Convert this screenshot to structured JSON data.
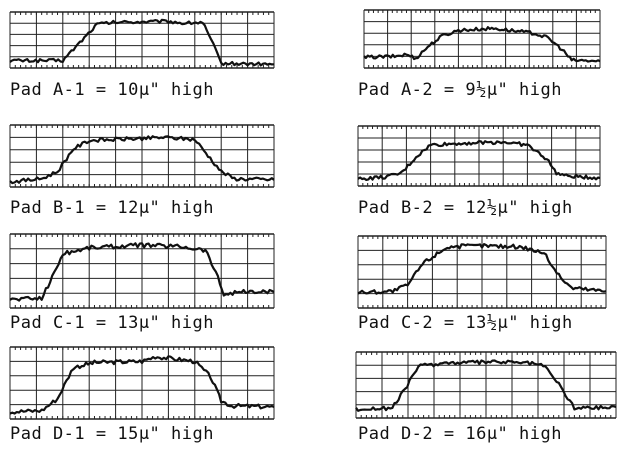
{
  "chart_data": [
    {
      "type": "line",
      "title": "Pad A-1 = 10µ\" high",
      "series": [
        {
          "x": [
            0,
            13,
            20,
            33,
            40,
            60,
            66,
            73,
            77,
            80,
            100
          ],
          "y": [
            0.3,
            0.3,
            0.3,
            4.2,
            4.4,
            4.5,
            4.3,
            4.4,
            2.0,
            0,
            -0.1
          ]
        }
      ]
    },
    {
      "type": "line",
      "title": "Pad A-2 = 9½µ\" high",
      "series": [
        {
          "x": [
            0,
            13,
            18,
            22,
            27,
            33,
            40,
            55,
            72,
            78,
            84,
            88,
            100
          ],
          "y": [
            0.6,
            0.7,
            0.9,
            0.5,
            1.7,
            2.8,
            3.4,
            3.6,
            3.1,
            2.6,
            1.4,
            0.3,
            0.2
          ]
        }
      ]
    },
    {
      "type": "line",
      "title": "Pad B-1 = 12µ\" high",
      "series": [
        {
          "x": [
            0,
            12,
            18,
            24,
            30,
            50,
            58,
            70,
            80,
            85,
            100
          ],
          "y": [
            0,
            0.3,
            1.0,
            3.2,
            4.0,
            4.2,
            4.3,
            4.1,
            1.0,
            0.3,
            0.2
          ]
        }
      ]
    },
    {
      "type": "line",
      "title": "Pad B-2 = 12½µ\" high",
      "series": [
        {
          "x": [
            0,
            12,
            18,
            24,
            30,
            45,
            60,
            70,
            78,
            82,
            86,
            100
          ],
          "y": [
            0.2,
            0.4,
            0.8,
            2.4,
            3.6,
            3.8,
            3.9,
            3.6,
            2.2,
            0.8,
            0.5,
            0.3
          ]
        }
      ]
    },
    {
      "type": "line",
      "title": "Pad C-1 = 13µ\" high",
      "series": [
        {
          "x": [
            0,
            12,
            16,
            20,
            30,
            50,
            65,
            74,
            78,
            81,
            86,
            100
          ],
          "y": [
            0.2,
            0.3,
            2.0,
            3.9,
            4.4,
            4.6,
            4.5,
            4.2,
            2.4,
            0.6,
            0.8,
            0.8
          ]
        }
      ]
    },
    {
      "type": "line",
      "title": "Pad C-2 = 13½µ\" high",
      "series": [
        {
          "x": [
            0,
            14,
            20,
            26,
            36,
            50,
            66,
            75,
            81,
            86,
            100
          ],
          "y": [
            0.8,
            0.9,
            1.4,
            3.2,
            4.6,
            4.7,
            4.6,
            4.1,
            2.2,
            1.2,
            0.9
          ]
        }
      ]
    },
    {
      "type": "line",
      "title": "Pad D-1 = 15µ\" high",
      "series": [
        {
          "x": [
            0,
            12,
            18,
            24,
            32,
            50,
            55,
            70,
            76,
            80,
            84,
            100
          ],
          "y": [
            0.1,
            0.2,
            1.2,
            3.8,
            4.2,
            4.3,
            4.7,
            4.3,
            3.0,
            1.0,
            0.6,
            0.5
          ]
        }
      ]
    },
    {
      "type": "line",
      "title": "Pad D-2 = 16µ\" high",
      "series": [
        {
          "x": [
            0,
            14,
            18,
            24,
            34,
            55,
            66,
            72,
            78,
            84,
            100
          ],
          "y": [
            0.3,
            0.4,
            1.8,
            4.2,
            4.5,
            4.6,
            4.5,
            4.3,
            2.6,
            0.4,
            0.5
          ]
        }
      ]
    }
  ],
  "colors": {
    "ink": "#111111",
    "grid": "#222222"
  }
}
